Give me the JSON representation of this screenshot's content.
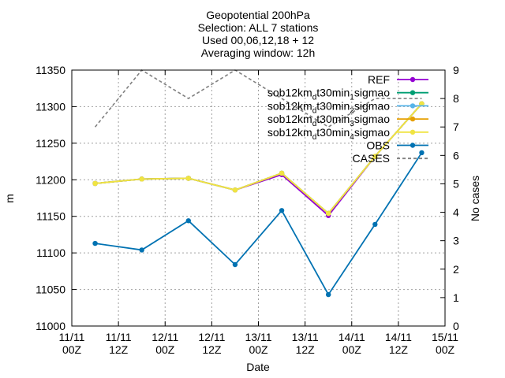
{
  "title_lines": [
    "Geopotential 200hPa",
    "Selection: ALL      7 stations",
    "Used 00,06,12,18 + 12",
    "Averaging window: 12h"
  ],
  "chart_data": {
    "type": "line",
    "xlabel": "Date",
    "ylabel": "m",
    "y2label": "No cases",
    "x_ticks": [
      {
        "line1": "11/11",
        "line2": "00Z"
      },
      {
        "line1": "11/11",
        "line2": "12Z"
      },
      {
        "line1": "12/11",
        "line2": "00Z"
      },
      {
        "line1": "12/11",
        "line2": "12Z"
      },
      {
        "line1": "13/11",
        "line2": "00Z"
      },
      {
        "line1": "13/11",
        "line2": "12Z"
      },
      {
        "line1": "14/11",
        "line2": "00Z"
      },
      {
        "line1": "14/11",
        "line2": "12Z"
      },
      {
        "line1": "15/11",
        "line2": "00Z"
      }
    ],
    "xlim": [
      "2011-11-11 00Z",
      "2011-11-15 00Z"
    ],
    "x": [
      "11/11 06Z",
      "11/11 18Z",
      "12/11 06Z",
      "12/11 18Z",
      "13/11 06Z",
      "13/11 18Z",
      "14/11 06Z",
      "14/11 18Z"
    ],
    "ylim": [
      11000,
      11350
    ],
    "y_ticks": [
      "11000",
      "11050",
      "11100",
      "11150",
      "11200",
      "11250",
      "11300",
      "11350"
    ],
    "y2lim": [
      0,
      9
    ],
    "y2_ticks": [
      "0",
      "1",
      "2",
      "3",
      "4",
      "5",
      "6",
      "7",
      "8",
      "9"
    ],
    "grid": true,
    "legend_position": "top-right",
    "series": [
      {
        "name": "REF",
        "color": "#9400d3",
        "axis": "y",
        "values": [
          11195,
          11201,
          11202,
          11186,
          11207,
          11151,
          11232,
          11304
        ]
      },
      {
        "name": "sob12km_d t30min_1 sigmao",
        "color": "#009e73",
        "axis": "y",
        "values": [
          11195,
          11201,
          11202,
          11186,
          11209,
          11154,
          11232,
          11304
        ]
      },
      {
        "name": "sob12km_d t30min_2 sigmao",
        "color": "#56b4e9",
        "axis": "y",
        "values": [
          11195,
          11201,
          11202,
          11186,
          11209,
          11154,
          11232,
          11304
        ]
      },
      {
        "name": "sob12km_d t30min_3 sigmao",
        "color": "#e69f00",
        "axis": "y",
        "values": [
          11195,
          11201,
          11202,
          11186,
          11209,
          11154,
          11232,
          11304
        ]
      },
      {
        "name": "sob12km_d t30min_4 sigmao",
        "color": "#f0e442",
        "axis": "y",
        "values": [
          11195,
          11201,
          11202,
          11186,
          11209,
          11154,
          11232,
          11304
        ]
      },
      {
        "name": "OBS",
        "color": "#0072b2",
        "axis": "y",
        "values": [
          11113,
          11104,
          11144,
          11084,
          11158,
          11043,
          11139,
          11237
        ]
      },
      {
        "name": "CASES",
        "color": "#808080",
        "axis": "y2",
        "dashed": true,
        "values": [
          7,
          9,
          8,
          9,
          8,
          7,
          8,
          8
        ]
      }
    ]
  }
}
